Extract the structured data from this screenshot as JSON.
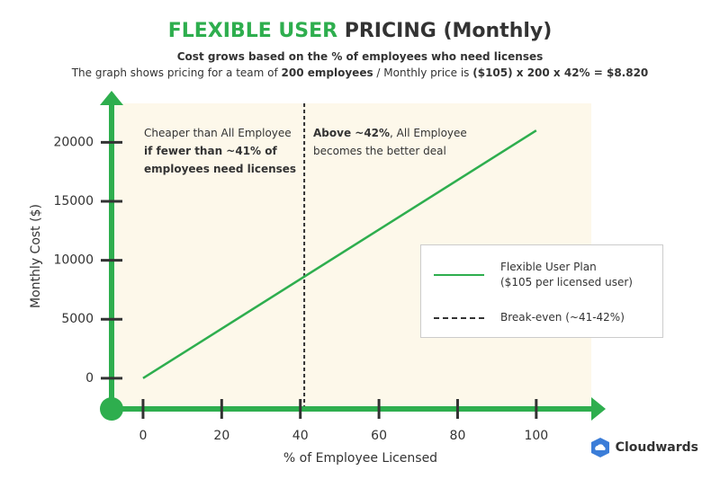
{
  "chart_data": {
    "type": "line",
    "title_parts": [
      {
        "text": "FLEXIBLE USER",
        "color": "#2eae4e"
      },
      {
        "text": " PRICING (Monthly)",
        "color": "#333333"
      }
    ],
    "subtitle": "Cost grows based on the % of employees who need licenses",
    "subtitle_parts": [
      {
        "text": "The graph shows pricing for a team of ",
        "bold": false
      },
      {
        "text": "200 employees",
        "bold": true
      },
      {
        "text": " / Monthly price is ",
        "bold": false
      },
      {
        "text": "($105) x 200 x 42% = $8.820",
        "bold": true
      }
    ],
    "annotations": [
      [
        {
          "text": "Cheaper than All Employee\n",
          "bold": false
        },
        {
          "text": "if fewer than ~41% of\nemployees need licenses",
          "bold": true
        }
      ],
      [
        {
          "text": "Above ~42%",
          "bold": true
        },
        {
          "text": ", All Employee\nbecomes the better deal",
          "bold": false
        }
      ]
    ],
    "x_label": "% of Employee Licensed",
    "y_label": "Monthly Cost ($)",
    "x": [
      0,
      100
    ],
    "series": [
      {
        "name": "Flexible User Plan\n($105 per licensed user)",
        "color": "#2eae4e",
        "values": [
          0,
          21000
        ]
      }
    ],
    "breakeven": {
      "name": "Break-even (~41-42%)",
      "x": 41,
      "color": "#333333"
    },
    "xlim": [
      -8,
      114
    ],
    "ylim": [
      -2600,
      23300
    ],
    "xticks": [
      0,
      20,
      40,
      60,
      80,
      100
    ],
    "yticks": [
      0,
      5000,
      10000,
      15000,
      20000
    ],
    "axis_color": "#2eae4e",
    "background": "#fdf8ea"
  },
  "brand": "Cloudwards"
}
